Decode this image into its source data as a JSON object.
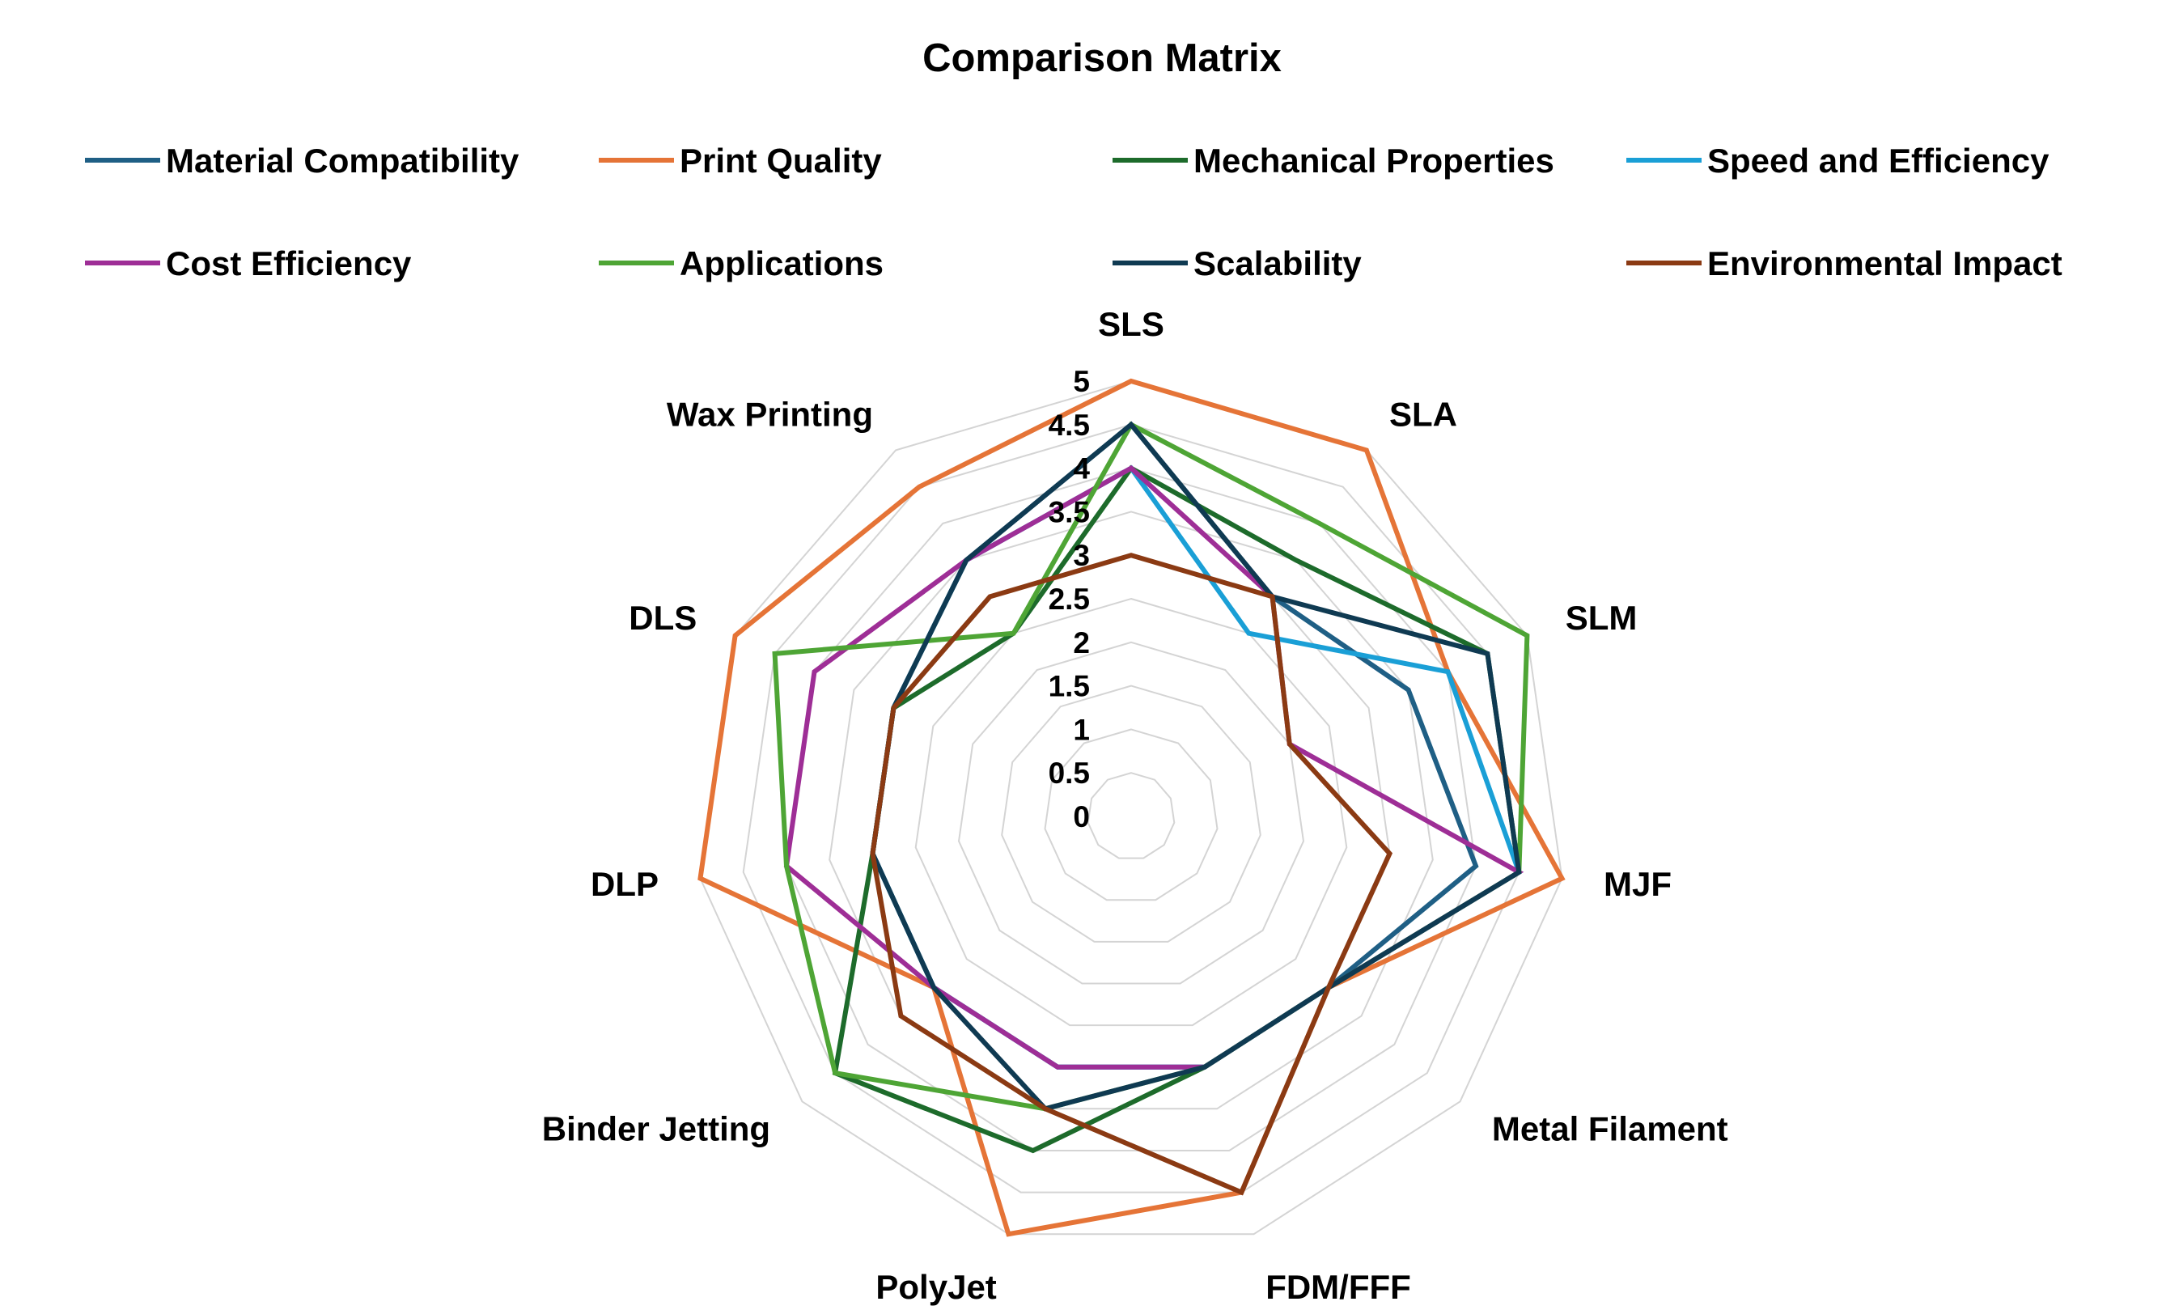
{
  "chart_data": {
    "type": "radar",
    "title": "Comparison Matrix",
    "categories": [
      "SLS",
      "SLA",
      "SLM",
      "MJF",
      "Metal Filament",
      "FDM/FFF",
      "PolyJet",
      "Binder Jetting",
      "DLP",
      "DLS",
      "Wax Printing"
    ],
    "r_ticks": [
      "0",
      "0.5",
      "1",
      "1.5",
      "2",
      "2.5",
      "3",
      "3.5",
      "4",
      "4.5",
      "5"
    ],
    "r_range": [
      0,
      5
    ],
    "grid": true,
    "legend_position": "top",
    "series": [
      {
        "name": "Material Compatibility",
        "color": "#1f5f85",
        "values": [
          4.5,
          3.0,
          3.5,
          4.0,
          3.0,
          3.0,
          3.0,
          3.0,
          3.0,
          3.0,
          3.5
        ]
      },
      {
        "name": "Print Quality",
        "color": "#e57437",
        "values": [
          5.0,
          5.0,
          4.0,
          5.0,
          3.0,
          4.5,
          5.0,
          3.0,
          5.0,
          5.0,
          4.5
        ]
      },
      {
        "name": "Mechanical Properties",
        "color": "#1d6b2b",
        "values": [
          4.0,
          3.5,
          4.5,
          4.5,
          3.0,
          3.0,
          4.0,
          4.5,
          3.0,
          3.0,
          2.5
        ]
      },
      {
        "name": "Speed and Efficiency",
        "color": "#1a9fd6",
        "values": [
          4.0,
          2.5,
          4.0,
          4.5,
          3.0,
          3.0,
          3.0,
          3.0,
          3.0,
          3.0,
          3.5
        ]
      },
      {
        "name": "Cost Efficiency",
        "color": "#9e2e96",
        "values": [
          4.0,
          3.0,
          2.0,
          4.5,
          3.0,
          3.0,
          3.0,
          3.0,
          4.0,
          4.0,
          3.5
        ]
      },
      {
        "name": "Applications",
        "color": "#4ea535",
        "values": [
          4.5,
          4.0,
          5.0,
          4.5,
          3.0,
          3.0,
          3.5,
          4.5,
          4.0,
          4.5,
          2.5
        ]
      },
      {
        "name": "Scalability",
        "color": "#0f3a52",
        "values": [
          4.5,
          3.0,
          4.5,
          4.5,
          3.0,
          3.0,
          3.5,
          3.0,
          3.0,
          3.0,
          3.5
        ]
      },
      {
        "name": "Environmental Impact",
        "color": "#8b3a13",
        "values": [
          3.0,
          3.0,
          2.0,
          3.0,
          3.0,
          4.5,
          3.5,
          3.5,
          3.0,
          3.0,
          3.0
        ]
      }
    ]
  }
}
